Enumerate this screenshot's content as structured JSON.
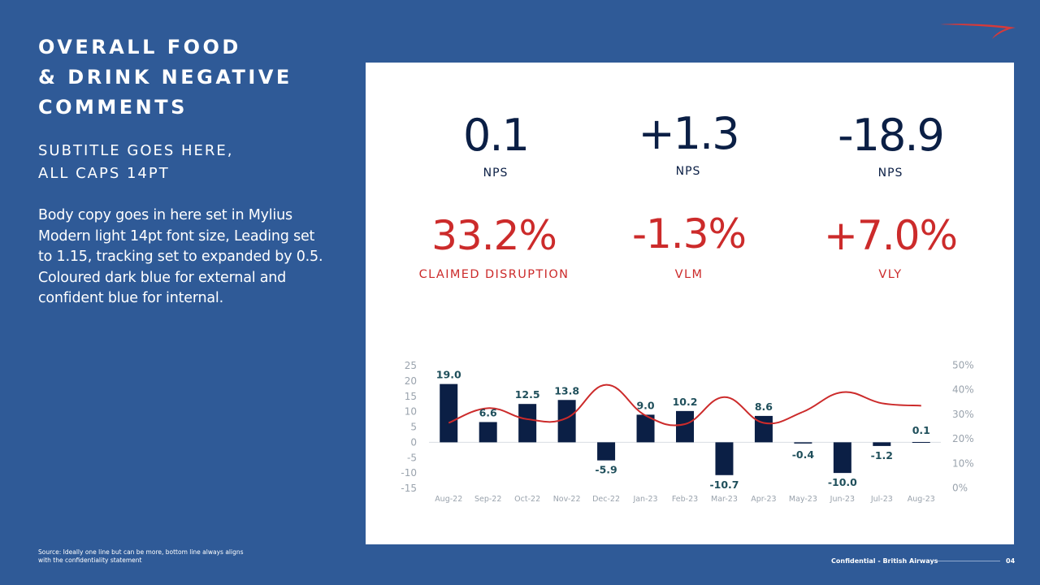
{
  "slide": {
    "title": "OVERALL FOOD\n& DRINK NEGATIVE\nCOMMENTS",
    "subtitle": "SUBTITLE GOES HERE,\nALL CAPS 14PT",
    "body": "Body copy goes in here set in Mylius Modern light 14pt font size, Leading set to 1.15, tracking set to expanded by 0.5. Coloured dark blue for external and confident blue for internal.",
    "source": "Source: Ideally one line but can be more, bottom line always aligns with the confidentiality statement",
    "footer": {
      "confidential": "Confidential - British Airways",
      "page": "04"
    }
  },
  "kpis": {
    "top": [
      {
        "value": "0.1",
        "label": "NPS"
      },
      {
        "value": "+1.3",
        "label": "NPS"
      },
      {
        "value": "-18.9",
        "label": "NPS"
      }
    ],
    "bottom": [
      {
        "value": "33.2%",
        "label": "CLAIMED DISRUPTION"
      },
      {
        "value": "-1.3%",
        "label": "VLM"
      },
      {
        "value": "+7.0%",
        "label": "VLY"
      }
    ]
  },
  "colors": {
    "background": "#2f5a97",
    "bar": "#0b1f45",
    "line": "#cc2b2b",
    "label_teal": "#1f4f5b",
    "axis_text": "#9aa3ad"
  },
  "chart_data": {
    "type": "bar",
    "categories": [
      "Aug-22",
      "Sep-22",
      "Oct-22",
      "Nov-22",
      "Dec-22",
      "Jan-23",
      "Feb-23",
      "Mar-23",
      "Apr-23",
      "May-23",
      "Jun-23",
      "Jul-23",
      "Aug-23"
    ],
    "series": [
      {
        "axis": "left",
        "type": "bar",
        "values": [
          19.0,
          6.6,
          12.5,
          13.8,
          -5.9,
          9.0,
          10.2,
          -10.7,
          8.6,
          -0.4,
          -10.0,
          -1.2,
          0.1
        ]
      },
      {
        "axis": "right",
        "type": "line",
        "values": [
          26.5,
          32.5,
          28.0,
          28.5,
          42.0,
          29.5,
          26.0,
          37.0,
          26.5,
          31.0,
          39.0,
          34.5,
          33.5
        ]
      }
    ],
    "data_labels": [
      "19.0",
      "6.6",
      "12.5",
      "13.8",
      "-5.9",
      "9.0",
      "10.2",
      "-10.7",
      "8.6",
      "-0.4",
      "-10.0",
      "-1.2",
      "0.1"
    ],
    "ylim": [
      -15,
      25
    ],
    "yticks": [
      "25",
      "20",
      "15",
      "10",
      "5",
      "0",
      "-5",
      "-10",
      "-15"
    ],
    "y2lim": [
      0,
      50
    ],
    "y2ticks": [
      "50%",
      "40%",
      "30%",
      "20%",
      "10%",
      "0%"
    ],
    "grid": false,
    "legend": "none"
  }
}
